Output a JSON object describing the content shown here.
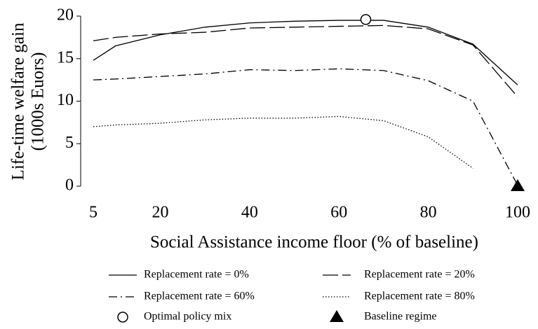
{
  "chart_data": {
    "type": "line",
    "x_label": "Social Assistance income floor (% of baseline)",
    "y_label": [
      "Life-time welfare gain",
      "(1000s Euors)"
    ],
    "x": [
      5,
      10,
      20,
      30,
      40,
      50,
      60,
      70,
      80,
      90,
      100
    ],
    "series": [
      {
        "name": "Replacement rate = 0%",
        "color": "#000000",
        "dash": "solid",
        "values": [
          14.8,
          16.5,
          17.8,
          18.7,
          19.2,
          19.4,
          19.5,
          19.5,
          18.7,
          16.7,
          11.9
        ]
      },
      {
        "name": "Replacement rate = 20%",
        "color": "#000000",
        "dash": "long",
        "values": [
          17.1,
          17.5,
          17.9,
          18.1,
          18.6,
          18.7,
          18.8,
          18.9,
          18.5,
          16.6,
          10.5
        ]
      },
      {
        "name": "Replacement rate = 60%",
        "color": "#000000",
        "dash": "dashdot",
        "values": [
          12.5,
          12.6,
          12.9,
          13.2,
          13.7,
          13.6,
          13.8,
          13.6,
          12.4,
          10.0,
          0.1
        ]
      },
      {
        "name": "Replacement rate = 80%",
        "color": "#000000",
        "dash": "dot",
        "values": [
          7.0,
          7.2,
          7.4,
          7.8,
          8.0,
          8.0,
          8.2,
          7.7,
          5.8,
          2.1,
          null
        ]
      }
    ],
    "points": [
      {
        "name": "Optimal policy mix",
        "marker": "circle",
        "x": 66,
        "y": 19.6
      },
      {
        "name": "Baseline regime",
        "marker": "triangle",
        "x": 100,
        "y": 0
      }
    ],
    "xlim": [
      5,
      100
    ],
    "xticks": [
      5,
      20,
      40,
      60,
      80,
      100
    ],
    "ylim": [
      0,
      20
    ],
    "yticks": [
      0,
      5,
      10,
      15,
      20
    ]
  }
}
